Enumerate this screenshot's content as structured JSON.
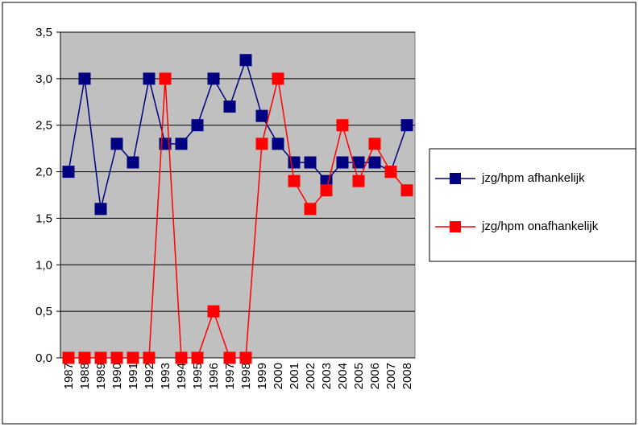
{
  "chart_data": {
    "type": "line",
    "categories": [
      "1987",
      "1988",
      "1989",
      "1990",
      "1991",
      "1992",
      "1993",
      "1994",
      "1995",
      "1996",
      "1997",
      "1998",
      "1999",
      "2000",
      "2001",
      "2002",
      "2003",
      "2004",
      "2005",
      "2006",
      "2007",
      "2008"
    ],
    "series": [
      {
        "name": "jzg/hpm afhankelijk",
        "color": "#000080",
        "values": [
          2.0,
          3.0,
          1.6,
          2.3,
          2.1,
          3.0,
          2.3,
          2.3,
          2.5,
          3.0,
          2.7,
          3.2,
          2.6,
          2.3,
          2.1,
          2.1,
          1.9,
          2.1,
          2.1,
          2.1,
          2.0,
          2.5
        ]
      },
      {
        "name": "jzg/hpm onafhankelijk",
        "color": "#ff0000",
        "values": [
          0,
          0,
          0,
          0,
          0,
          0,
          3.0,
          0,
          0,
          0.5,
          0,
          0,
          2.3,
          3.0,
          1.9,
          1.6,
          1.8,
          2.5,
          1.9,
          2.3,
          2.0,
          1.8
        ]
      }
    ],
    "ylim": [
      0,
      3.5
    ],
    "yticks": [
      {
        "value": 0,
        "label": "0,0"
      },
      {
        "value": 0.5,
        "label": "0,5"
      },
      {
        "value": 1,
        "label": "1,0"
      },
      {
        "value": 1.5,
        "label": "1,5"
      },
      {
        "value": 2,
        "label": "2,0"
      },
      {
        "value": 2.5,
        "label": "2,5"
      },
      {
        "value": 3,
        "label": "3,0"
      },
      {
        "value": 3.5,
        "label": "3,5"
      }
    ],
    "grid": true,
    "legend": "right",
    "plot_background": "#c0c0c0"
  }
}
